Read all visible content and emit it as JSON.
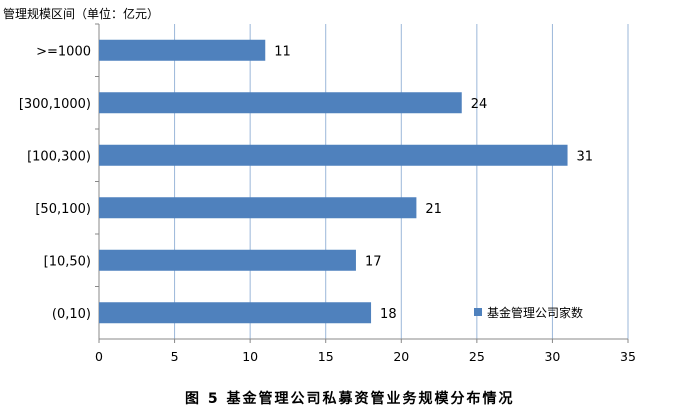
{
  "chart_data": {
    "type": "bar",
    "orientation": "horizontal",
    "categories": [
      ">=1000",
      "[300,1000)",
      "[100,300)",
      "[50,100)",
      "[10,50)",
      "(0,10)"
    ],
    "series": [
      {
        "name": "基金管理公司家数",
        "values": [
          11,
          24,
          31,
          21,
          17,
          18
        ],
        "color": "#4F81BD"
      }
    ],
    "unit_label": "管理规模区间（单位：亿元）",
    "xlim": [
      0,
      35
    ],
    "xticks": [
      0,
      5,
      10,
      15,
      20,
      25,
      30,
      35
    ],
    "grid": "vertical",
    "gridline_color": "#9BB7D9",
    "legend_position": "bottom-right",
    "data_labels": true,
    "caption": "图 5   基金管理公司私募资管业务规模分布情况"
  }
}
